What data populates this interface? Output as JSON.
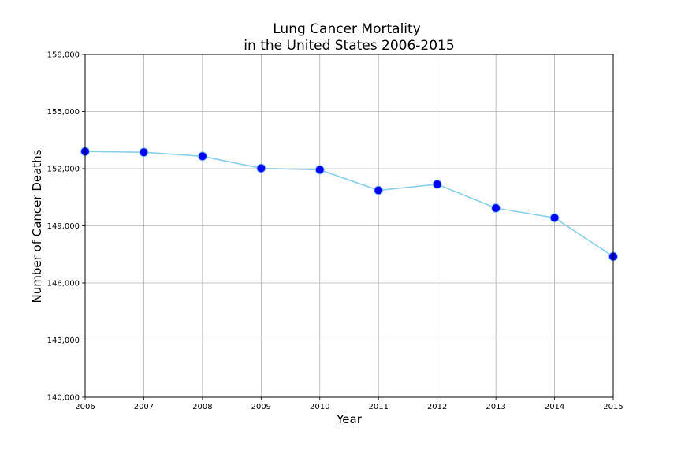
{
  "chart_data": {
    "type": "line",
    "title_line1": "Lung Cancer Mortality",
    "title_line2": "in the United States 2006-2015",
    "xlabel": "Year",
    "ylabel": "Number of Cancer Deaths",
    "x": [
      2006,
      2007,
      2008,
      2009,
      2010,
      2011,
      2012,
      2013,
      2014,
      2015
    ],
    "series": [
      {
        "values": [
          152900,
          152860,
          152650,
          152020,
          151940,
          150860,
          151180,
          149930,
          149420,
          147390
        ],
        "line_color": "#87ceeb",
        "marker_color": "#0000ff"
      }
    ],
    "xlim": [
      2006,
      2015
    ],
    "ylim": [
      140000,
      158000
    ],
    "x_ticks": [
      2006,
      2007,
      2008,
      2009,
      2010,
      2011,
      2012,
      2013,
      2014,
      2015
    ],
    "x_tick_labels": [
      "2006",
      "2007",
      "2008",
      "2009",
      "2010",
      "2011",
      "2012",
      "2013",
      "2014",
      "2015"
    ],
    "y_ticks": [
      140000,
      143000,
      146000,
      149000,
      152000,
      155000,
      158000
    ],
    "y_tick_labels": [
      "140,000",
      "143,000",
      "146,000",
      "149,000",
      "152,000",
      "155,000",
      "158,000"
    ],
    "grid": true,
    "grid_color": "#b0b0b0"
  }
}
